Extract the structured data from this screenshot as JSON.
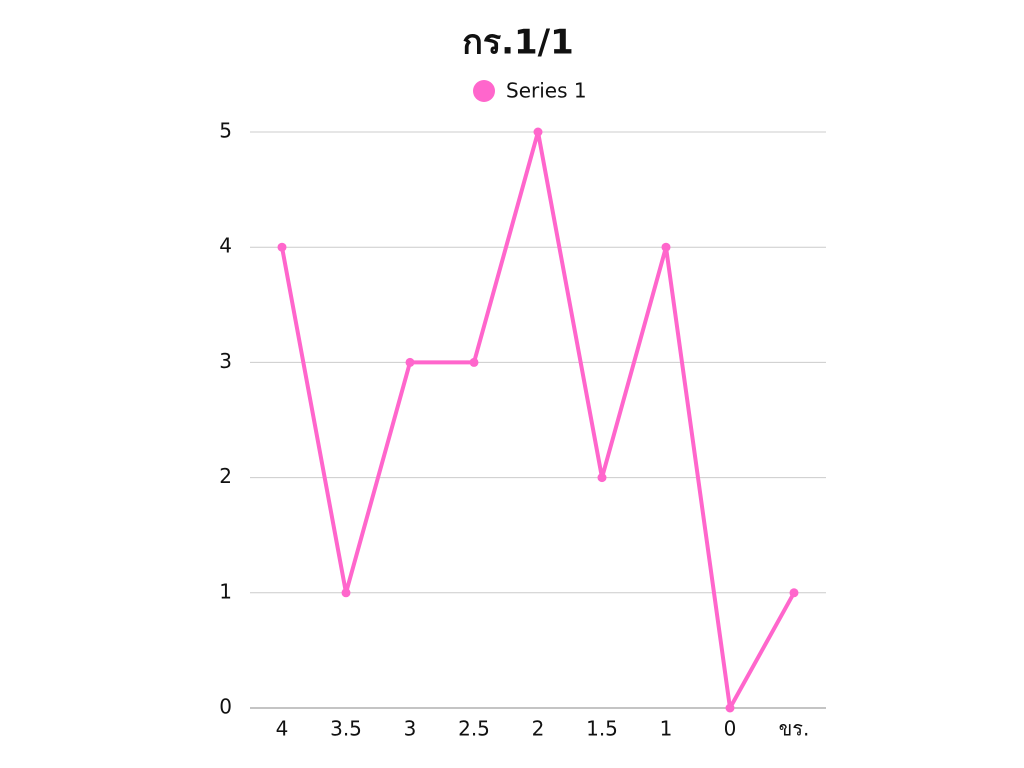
{
  "chart_data": {
    "type": "line",
    "title": "กร.1/1",
    "categories": [
      "4",
      "3.5",
      "3",
      "2.5",
      "2",
      "1.5",
      "1",
      "0",
      "ขร."
    ],
    "series": [
      {
        "name": "Series 1",
        "color": "#ff66cc",
        "values": [
          4,
          1,
          3,
          3,
          5,
          2,
          4,
          0,
          1
        ]
      }
    ],
    "ylim": [
      0,
      5
    ],
    "yticks": [
      0,
      1,
      2,
      3,
      4,
      5
    ],
    "grid": true,
    "legend": "top"
  }
}
